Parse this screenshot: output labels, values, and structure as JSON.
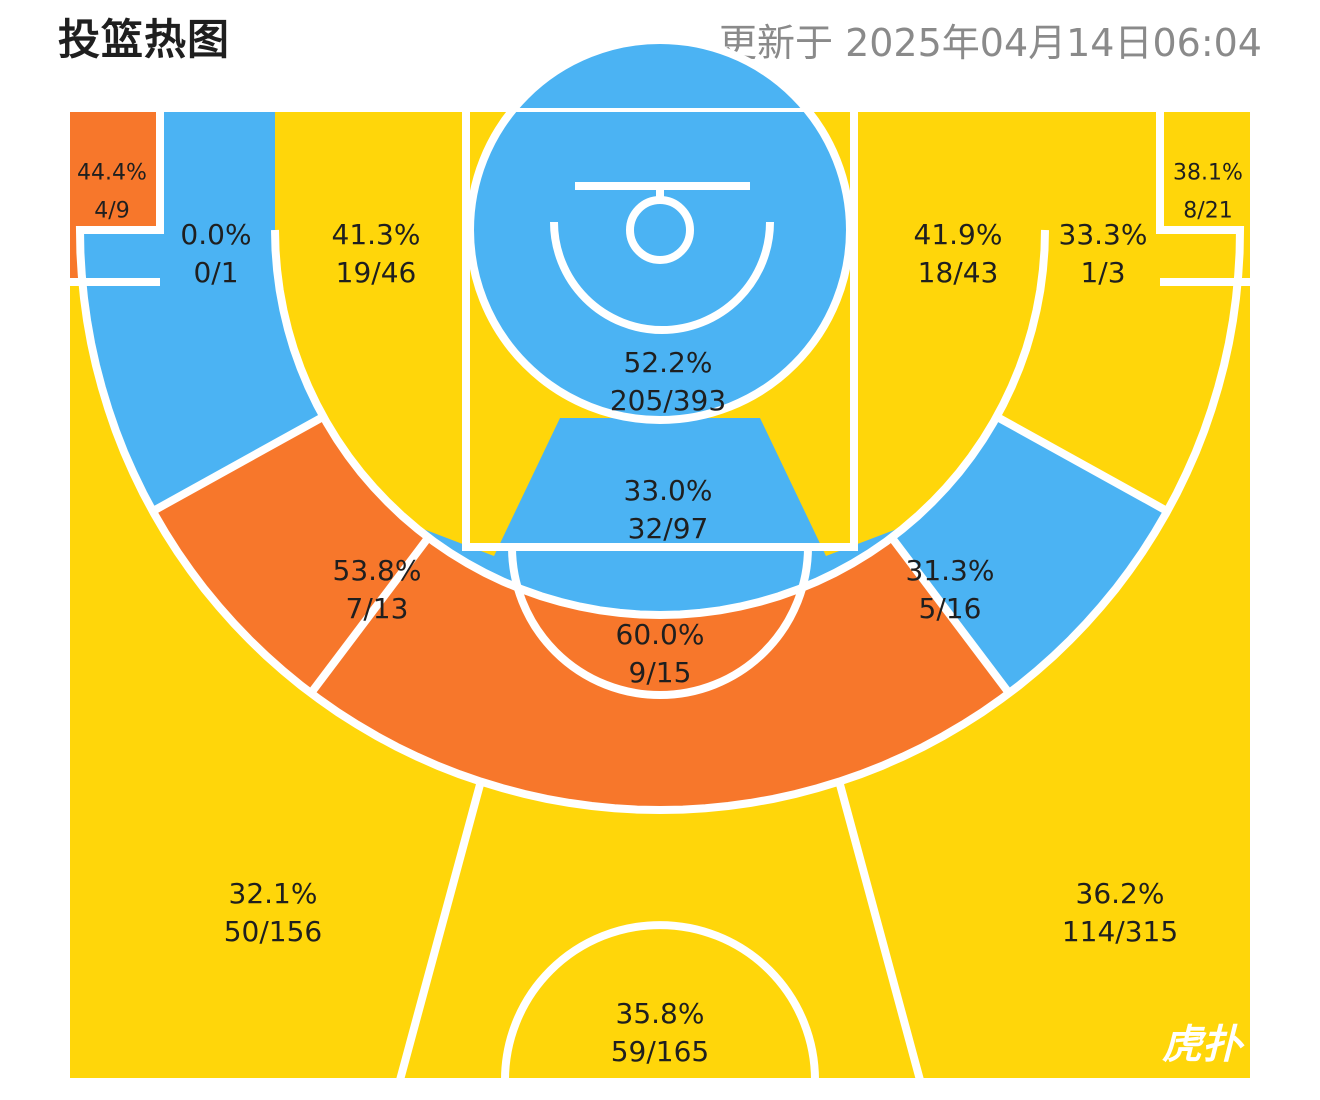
{
  "header": {
    "title": "投篮热图",
    "updated": "更新于 2025年04月14日06:04"
  },
  "logo": "虎扑",
  "colors": {
    "hot": "#F7772B",
    "mid": "#FFD60A",
    "cold": "#4BB3F3",
    "line": "#FFFFFF"
  },
  "chart_data": {
    "type": "heatmap",
    "title": "投篮热图",
    "zones": [
      {
        "id": "left-corner-three",
        "pct": "44.4%",
        "made": 4,
        "att": 9,
        "heat": "hot"
      },
      {
        "id": "left-wing-long-two",
        "pct": "0.0%",
        "made": 0,
        "att": 1,
        "heat": "cold"
      },
      {
        "id": "left-baseline-mid",
        "pct": "41.3%",
        "made": 19,
        "att": 46,
        "heat": "mid"
      },
      {
        "id": "restricted-area",
        "pct": "52.2%",
        "made": 205,
        "att": 393,
        "heat": "cold"
      },
      {
        "id": "paint-non-ra",
        "pct": "33.0%",
        "made": 32,
        "att": 97,
        "heat": "cold"
      },
      {
        "id": "right-baseline-mid",
        "pct": "41.9%",
        "made": 18,
        "att": 43,
        "heat": "mid"
      },
      {
        "id": "right-wing-long-two",
        "pct": "33.3%",
        "made": 1,
        "att": 3,
        "heat": "mid"
      },
      {
        "id": "right-corner-three",
        "pct": "38.1%",
        "made": 8,
        "att": 21,
        "heat": "mid"
      },
      {
        "id": "left-elbow-mid",
        "pct": "53.8%",
        "made": 7,
        "att": 13,
        "heat": "hot"
      },
      {
        "id": "top-key-mid",
        "pct": "60.0%",
        "made": 9,
        "att": 15,
        "heat": "hot"
      },
      {
        "id": "right-elbow-mid",
        "pct": "31.3%",
        "made": 5,
        "att": 16,
        "heat": "cold"
      },
      {
        "id": "left-wing-three",
        "pct": "32.1%",
        "made": 50,
        "att": 156,
        "heat": "mid"
      },
      {
        "id": "top-three",
        "pct": "35.8%",
        "made": 59,
        "att": 165,
        "heat": "mid"
      },
      {
        "id": "right-wing-three",
        "pct": "36.2%",
        "made": 114,
        "att": 315,
        "heat": "mid"
      }
    ]
  }
}
